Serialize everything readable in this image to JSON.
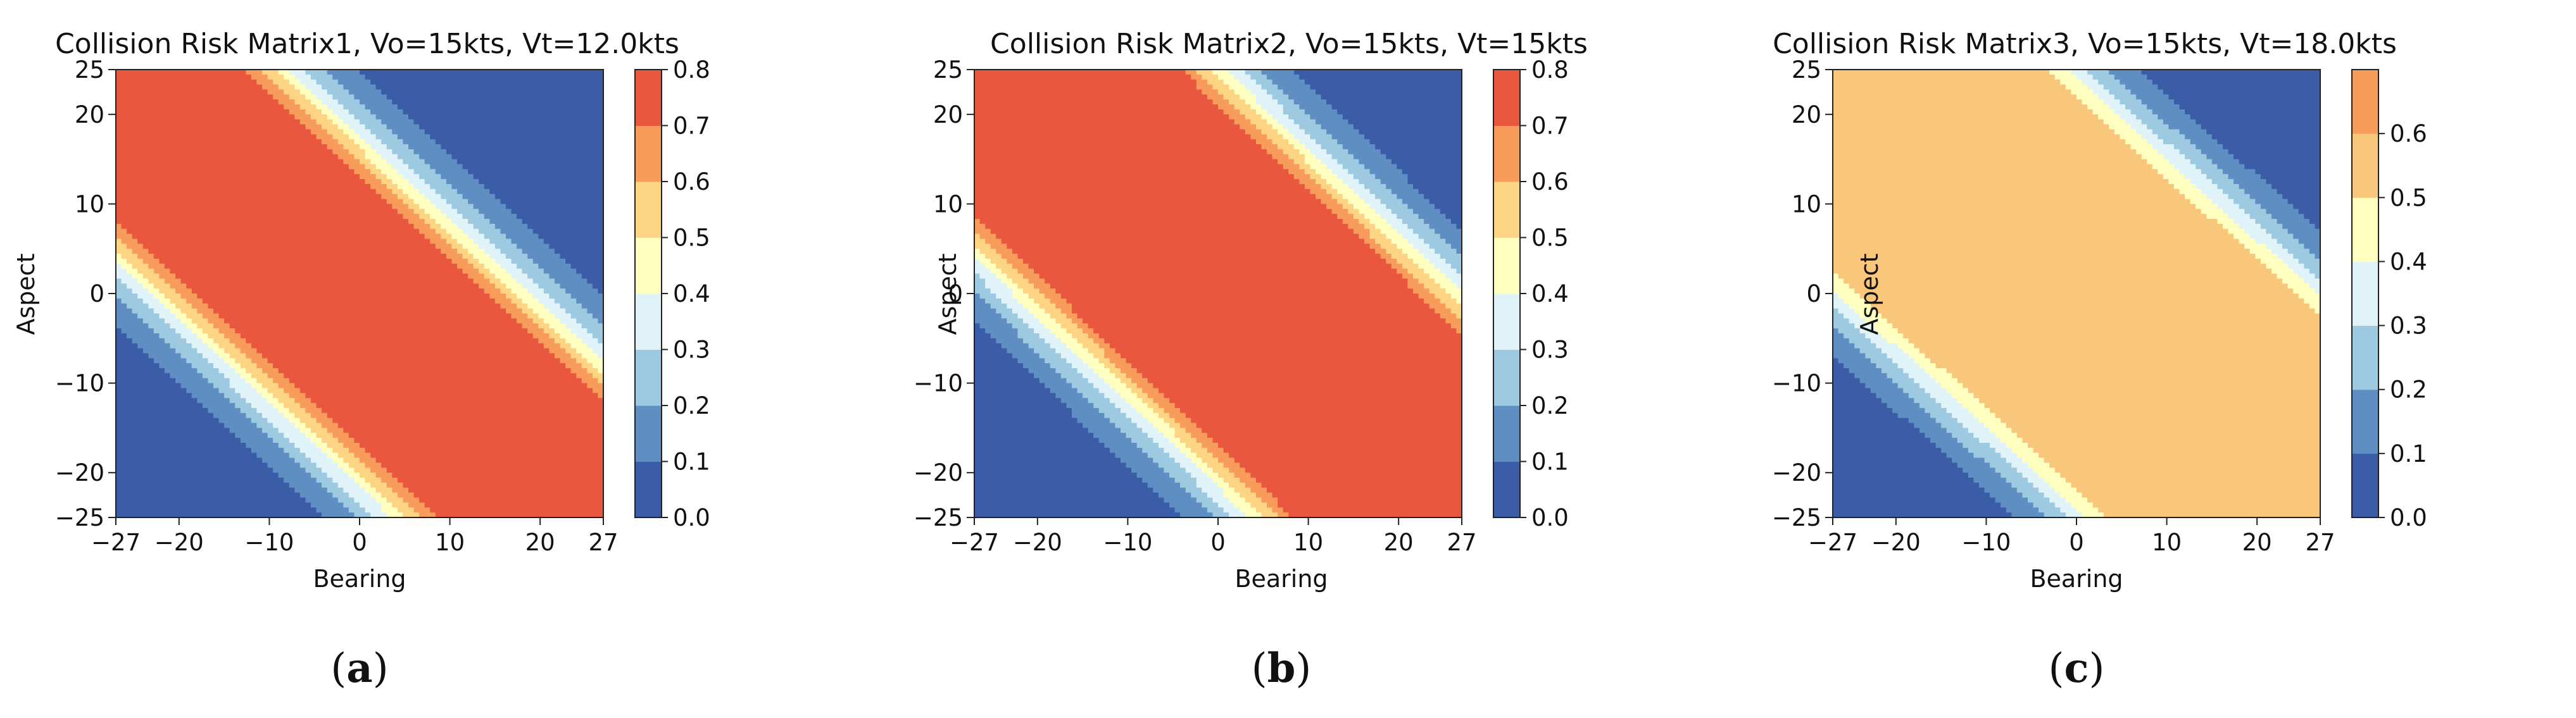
{
  "chart_data": [
    {
      "type": "heatmap",
      "variant": "filled-contour",
      "title": "Collision Risk Matrix1, Vo=15kts, Vt=12.0kts",
      "caption_letter": "a",
      "xlabel": "Bearing",
      "ylabel": "Aspect",
      "xlim": [
        -27,
        27
      ],
      "ylim": [
        -25,
        25
      ],
      "xticks": [
        -27,
        -20,
        -10,
        0,
        10,
        20,
        27
      ],
      "yticks": [
        -25,
        -20,
        -10,
        0,
        10,
        20,
        25
      ],
      "grid": false,
      "colormap": "RdYlBu_r",
      "colorbar": {
        "levels": [
          0.0,
          0.1,
          0.2,
          0.3,
          0.4,
          0.5,
          0.6,
          0.7,
          0.8
        ],
        "colors": [
          "#3b5ca6",
          "#5f8fc2",
          "#9ecae1",
          "#e0f3f8",
          "#ffffbf",
          "#fdd384",
          "#f79c5b",
          "#e9573f",
          "#c11e2a"
        ]
      },
      "description": "Band of high risk (>=0.7) along the diagonal from upper-left to lower-right; risk decreases toward the lower-left and upper-right corners.",
      "band_peak_intercept": -2.0,
      "band_slope": -0.93,
      "band_max_risk": 0.8,
      "band_core_halfwidth": 12.5,
      "band_falloff": 9.0,
      "left_shoulder_extra": 0
    },
    {
      "type": "heatmap",
      "variant": "filled-contour",
      "title": "Collision Risk Matrix2, Vo=15kts, Vt=15kts",
      "caption_letter": "b",
      "xlabel": "Bearing",
      "ylabel": "Aspect",
      "xlim": [
        -27,
        27
      ],
      "ylim": [
        -25,
        25
      ],
      "xticks": [
        -27,
        -20,
        -10,
        0,
        10,
        20,
        27
      ],
      "yticks": [
        -25,
        -20,
        -10,
        0,
        10,
        20,
        25
      ],
      "grid": false,
      "colormap": "RdYlBu_r",
      "colorbar": {
        "levels": [
          0.0,
          0.1,
          0.2,
          0.3,
          0.4,
          0.5,
          0.6,
          0.7,
          0.8
        ],
        "colors": [
          "#3b5ca6",
          "#5f8fc2",
          "#9ecae1",
          "#e0f3f8",
          "#ffffbf",
          "#fdd384",
          "#f79c5b",
          "#e9573f",
          "#c11e2a"
        ]
      },
      "description": "Wider high-risk (>=0.7) diagonal band; low-risk regions confined to the lower-left and upper-right corners.",
      "band_peak_intercept": 2.0,
      "band_slope": -0.95,
      "band_max_risk": 0.8,
      "band_core_halfwidth": 16.5,
      "band_falloff": 9.0,
      "left_shoulder_extra": 0
    },
    {
      "type": "heatmap",
      "variant": "filled-contour",
      "title": "Collision Risk Matrix3, Vo=15kts, Vt=18.0kts",
      "caption_letter": "c",
      "xlabel": "Bearing",
      "ylabel": "Aspect",
      "xlim": [
        -27,
        27
      ],
      "ylim": [
        -25,
        25
      ],
      "xticks": [
        -27,
        -20,
        -10,
        0,
        10,
        20,
        27
      ],
      "yticks": [
        -25,
        -20,
        -10,
        0,
        10,
        20,
        25
      ],
      "grid": false,
      "colormap": "RdYlBu_r",
      "colorbar": {
        "levels": [
          0.0,
          0.1,
          0.2,
          0.3,
          0.4,
          0.5,
          0.6,
          0.7
        ],
        "tick_labels": [
          0.0,
          0.1,
          0.2,
          0.3,
          0.4,
          0.5,
          0.6
        ],
        "colors": [
          "#3b5ca6",
          "#5f8fc2",
          "#9ecae1",
          "#e0f3f8",
          "#ffffbf",
          "#f9c77c",
          "#f79c5b"
        ]
      },
      "description": "Broad plateau of risk ~0.5 covering most of the matrix along the diagonal, with irregular lower-risk bands near the lower-left and upper-right corners and scattered 0.6 patches at the band edges.",
      "band_peak_intercept": 0.0,
      "band_slope": -0.9,
      "band_max_risk": 0.55,
      "band_core_halfwidth": 20.0,
      "band_falloff": 8.0,
      "left_shoulder_extra": 0
    }
  ]
}
